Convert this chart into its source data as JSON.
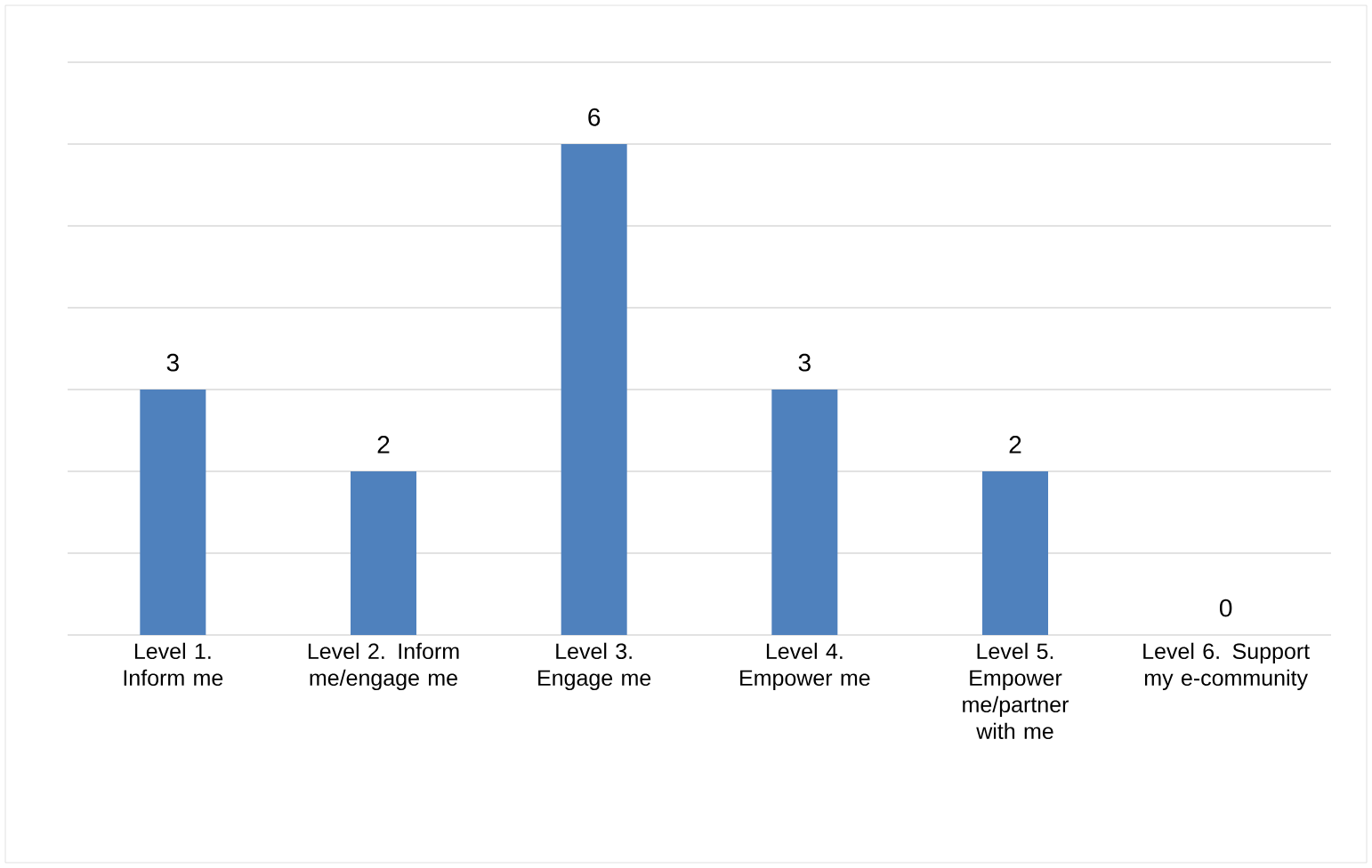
{
  "chart_data": {
    "type": "bar",
    "categories": [
      "Level 1. Inform me",
      "Level 2. Inform me/engage me",
      "Level 3. Engage me",
      "Level 4. Empower me",
      "Level 5. Empower me/partner with me",
      "Level 6. Support my e-community"
    ],
    "values": [
      3,
      2,
      6,
      3,
      2,
      0
    ],
    "color": "#4f81bd",
    "ylim": [
      0,
      7
    ],
    "yticks": [
      {
        "value": 0,
        "label": null
      },
      {
        "value": 1,
        "label": null
      },
      {
        "value": 2,
        "label": null
      },
      {
        "value": 3,
        "label": null
      },
      {
        "value": 4,
        "label": null
      },
      {
        "value": 5,
        "label": null
      },
      {
        "value": 6,
        "label": null
      },
      {
        "value": 7,
        "label": null
      }
    ],
    "grid": "y",
    "data_labels": true,
    "tick_labels": "x"
  }
}
